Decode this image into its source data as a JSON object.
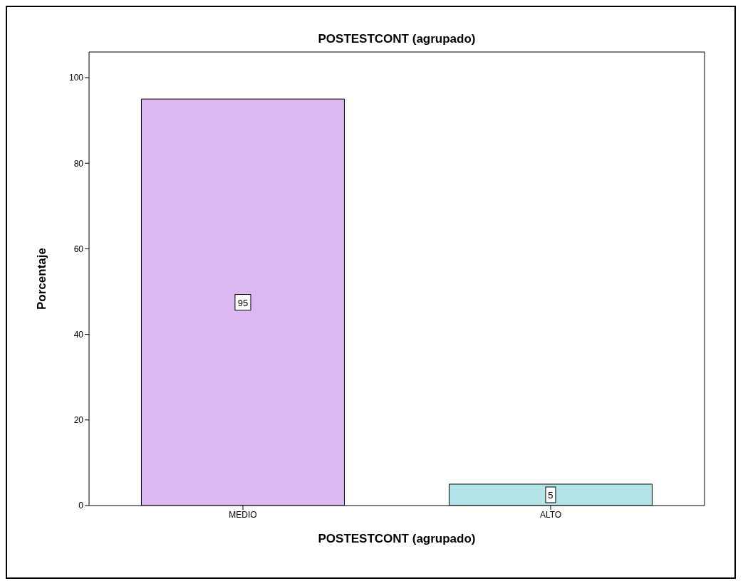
{
  "chart_data": {
    "type": "bar",
    "title": "POSTESTCONT (agrupado)",
    "xlabel": "POSTESTCONT (agrupado)",
    "ylabel": "Porcentaje",
    "categories": [
      "MEDIO",
      "ALTO"
    ],
    "values": [
      95,
      5
    ],
    "colors": [
      "#dcb8f0",
      "#b2e4e8"
    ],
    "ylim": [
      0,
      106
    ],
    "yticks": [
      0,
      20,
      40,
      60,
      80,
      100
    ],
    "data_labels": true
  }
}
